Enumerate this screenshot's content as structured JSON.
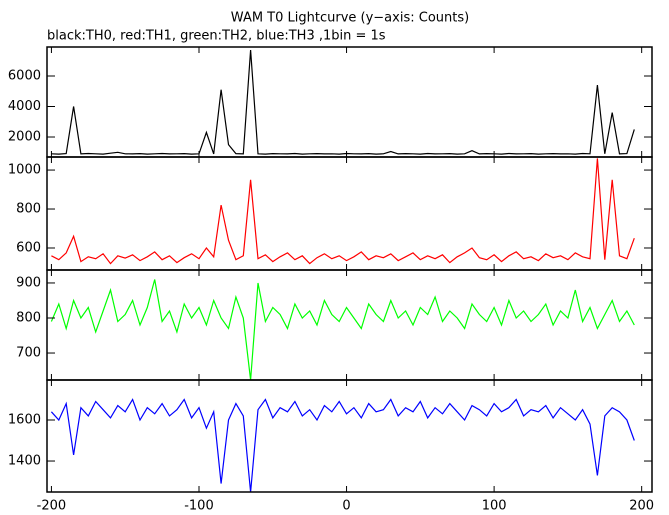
{
  "chart_data": [
    {
      "type": "line",
      "title": "WAM T0 Lightcurve (y−axis: Counts)",
      "subtitle": "black:TH0, red:TH1, green:TH2, blue:TH3 ,1bin = 1s",
      "x": [
        -200,
        -195,
        -190,
        -185,
        -180,
        -175,
        -170,
        -165,
        -160,
        -155,
        -150,
        -145,
        -140,
        -135,
        -130,
        -125,
        -120,
        -115,
        -110,
        -105,
        -100,
        -95,
        -90,
        -85,
        -80,
        -75,
        -70,
        -65,
        -60,
        -55,
        -50,
        -45,
        -40,
        -35,
        -30,
        -25,
        -20,
        -15,
        -10,
        -5,
        0,
        5,
        10,
        15,
        20,
        25,
        30,
        35,
        40,
        45,
        50,
        55,
        60,
        65,
        70,
        75,
        80,
        85,
        90,
        95,
        100,
        105,
        110,
        115,
        120,
        125,
        130,
        135,
        140,
        145,
        150,
        155,
        160,
        165,
        170,
        175,
        180,
        185,
        190,
        195
      ],
      "series": [
        {
          "color": "#000000",
          "values": [
            900,
            880,
            910,
            4000,
            890,
            920,
            900,
            880,
            940,
            1000,
            900,
            890,
            910,
            880,
            900,
            920,
            890,
            900,
            910,
            880,
            900,
            2300,
            890,
            5100,
            1500,
            910,
            890,
            7700,
            900,
            880,
            910,
            900,
            890,
            920,
            880,
            900,
            910,
            890,
            900,
            880,
            920,
            900,
            890,
            910,
            880,
            900,
            1050,
            890,
            910,
            900,
            880,
            920,
            890,
            900,
            910,
            880,
            900,
            1100,
            890,
            910,
            900,
            880,
            920,
            890,
            900,
            910,
            880,
            900,
            910,
            890,
            900,
            880,
            920,
            900,
            5400,
            900,
            3600,
            890,
            910,
            2500
          ]
        }
      ],
      "xlim": [
        -203,
        207
      ],
      "ylim": [
        690,
        7900
      ],
      "yticks": [
        2000,
        4000,
        6000
      ]
    },
    {
      "type": "line",
      "x": [
        -200,
        -195,
        -190,
        -185,
        -180,
        -175,
        -170,
        -165,
        -160,
        -155,
        -150,
        -145,
        -140,
        -135,
        -130,
        -125,
        -120,
        -115,
        -110,
        -105,
        -100,
        -95,
        -90,
        -85,
        -80,
        -75,
        -70,
        -65,
        -60,
        -55,
        -50,
        -45,
        -40,
        -35,
        -30,
        -25,
        -20,
        -15,
        -10,
        -5,
        0,
        5,
        10,
        15,
        20,
        25,
        30,
        35,
        40,
        45,
        50,
        55,
        60,
        65,
        70,
        75,
        80,
        85,
        90,
        95,
        100,
        105,
        110,
        115,
        120,
        125,
        130,
        135,
        140,
        145,
        150,
        155,
        160,
        165,
        170,
        175,
        180,
        185,
        190,
        195
      ],
      "series": [
        {
          "color": "#ff0000",
          "values": [
            560,
            540,
            575,
            660,
            530,
            555,
            545,
            570,
            520,
            560,
            548,
            565,
            535,
            555,
            580,
            540,
            560,
            525,
            550,
            570,
            545,
            600,
            555,
            820,
            640,
            540,
            560,
            950,
            545,
            565,
            530,
            555,
            575,
            540,
            560,
            520,
            550,
            570,
            545,
            560,
            535,
            555,
            580,
            540,
            560,
            550,
            570,
            535,
            555,
            575,
            540,
            560,
            545,
            565,
            525,
            555,
            575,
            600,
            550,
            540,
            565,
            530,
            560,
            580,
            545,
            555,
            535,
            570,
            550,
            560,
            540,
            575,
            555,
            545,
            1060,
            540,
            950,
            560,
            545,
            650
          ]
        }
      ],
      "xlim": [
        -203,
        207
      ],
      "ylim": [
        487,
        1067
      ],
      "yticks": [
        600,
        800,
        1000
      ]
    },
    {
      "type": "line",
      "x": [
        -200,
        -195,
        -190,
        -185,
        -180,
        -175,
        -170,
        -165,
        -160,
        -155,
        -150,
        -145,
        -140,
        -135,
        -130,
        -125,
        -120,
        -115,
        -110,
        -105,
        -100,
        -95,
        -90,
        -85,
        -80,
        -75,
        -70,
        -65,
        -60,
        -55,
        -50,
        -45,
        -40,
        -35,
        -30,
        -25,
        -20,
        -15,
        -10,
        -5,
        0,
        5,
        10,
        15,
        20,
        25,
        30,
        35,
        40,
        45,
        50,
        55,
        60,
        65,
        70,
        75,
        80,
        85,
        90,
        95,
        100,
        105,
        110,
        115,
        120,
        125,
        130,
        135,
        140,
        145,
        150,
        155,
        160,
        165,
        170,
        175,
        180,
        185,
        190,
        195
      ],
      "series": [
        {
          "color": "#00ff00",
          "values": [
            790,
            840,
            770,
            850,
            800,
            830,
            760,
            820,
            880,
            790,
            810,
            850,
            780,
            830,
            910,
            790,
            820,
            760,
            840,
            800,
            830,
            780,
            850,
            800,
            770,
            860,
            800,
            623,
            900,
            790,
            830,
            810,
            770,
            840,
            800,
            820,
            780,
            850,
            810,
            790,
            830,
            800,
            770,
            840,
            810,
            790,
            850,
            800,
            820,
            780,
            830,
            810,
            860,
            790,
            820,
            800,
            770,
            840,
            810,
            790,
            830,
            780,
            850,
            800,
            820,
            790,
            810,
            840,
            780,
            820,
            800,
            880,
            790,
            830,
            770,
            810,
            850,
            790,
            820,
            780
          ]
        }
      ],
      "xlim": [
        -203,
        207
      ],
      "ylim": [
        623,
        937
      ],
      "yticks": [
        700,
        800,
        900
      ]
    },
    {
      "type": "line",
      "x": [
        -200,
        -195,
        -190,
        -185,
        -180,
        -175,
        -170,
        -165,
        -160,
        -155,
        -150,
        -145,
        -140,
        -135,
        -130,
        -125,
        -120,
        -115,
        -110,
        -105,
        -100,
        -95,
        -90,
        -85,
        -80,
        -75,
        -70,
        -65,
        -60,
        -55,
        -50,
        -45,
        -40,
        -35,
        -30,
        -25,
        -20,
        -15,
        -10,
        -5,
        0,
        5,
        10,
        15,
        20,
        25,
        30,
        35,
        40,
        45,
        50,
        55,
        60,
        65,
        70,
        75,
        80,
        85,
        90,
        95,
        100,
        105,
        110,
        115,
        120,
        125,
        130,
        135,
        140,
        145,
        150,
        155,
        160,
        165,
        170,
        175,
        180,
        185,
        190,
        195
      ],
      "series": [
        {
          "color": "#0000ff",
          "values": [
            1640,
            1600,
            1680,
            1430,
            1660,
            1620,
            1690,
            1650,
            1610,
            1670,
            1640,
            1700,
            1600,
            1660,
            1630,
            1680,
            1620,
            1650,
            1700,
            1610,
            1660,
            1560,
            1640,
            1290,
            1600,
            1680,
            1620,
            1249,
            1650,
            1700,
            1610,
            1660,
            1640,
            1690,
            1620,
            1650,
            1600,
            1670,
            1640,
            1690,
            1630,
            1660,
            1610,
            1680,
            1640,
            1650,
            1700,
            1620,
            1660,
            1640,
            1690,
            1610,
            1660,
            1630,
            1680,
            1640,
            1600,
            1670,
            1650,
            1620,
            1680,
            1640,
            1660,
            1700,
            1620,
            1650,
            1640,
            1670,
            1610,
            1660,
            1630,
            1600,
            1650,
            1580,
            1330,
            1620,
            1660,
            1640,
            1600,
            1500
          ]
        }
      ],
      "xlim": [
        -203,
        207
      ],
      "ylim": [
        1249,
        1795
      ],
      "yticks": [
        1400,
        1600
      ],
      "xticks": [
        -200,
        -100,
        0,
        100,
        200
      ]
    }
  ]
}
